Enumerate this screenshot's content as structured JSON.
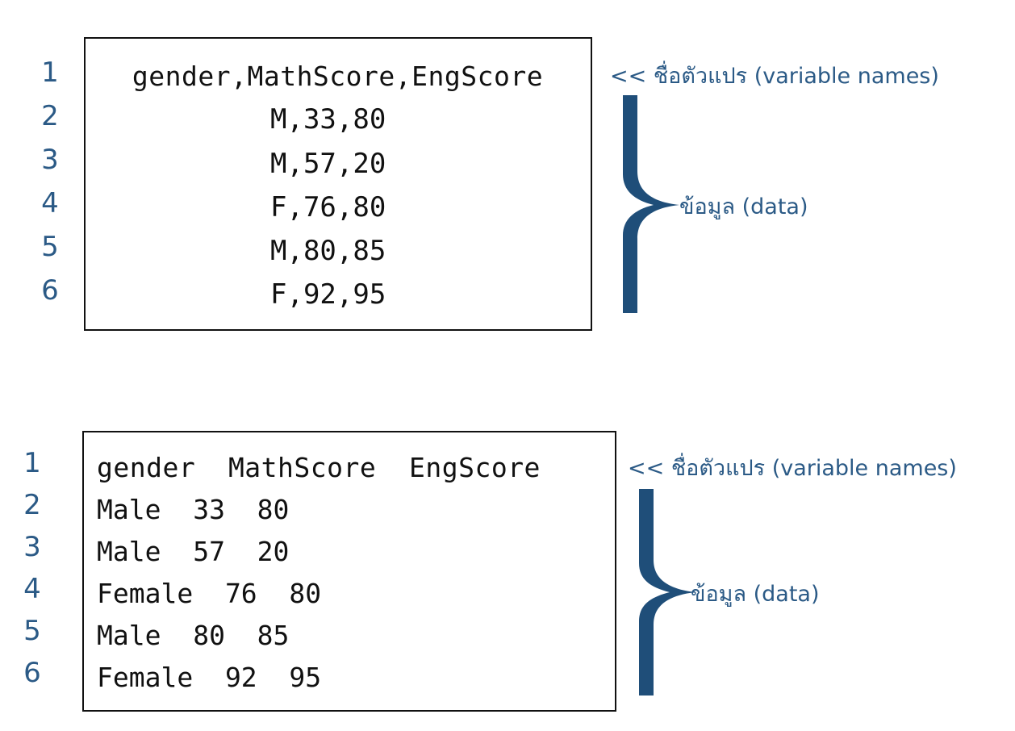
{
  "colors": {
    "accent": "#2b5a86",
    "brace": "#1f4e79",
    "text": "#111111",
    "border": "#111111"
  },
  "panel_csv": {
    "line_numbers": [
      "1",
      "2",
      "3",
      "4",
      "5",
      "6"
    ],
    "lines": [
      "gender,MathScore,EngScore",
      "M,33,80",
      "M,57,20",
      "F,76,80",
      "M,80,85",
      "F,92,95"
    ],
    "variable_names_label": "<< ชื่อตัวแปร (variable names)",
    "data_label": "ข้อมูล (data)"
  },
  "panel_space": {
    "line_numbers": [
      "1",
      "2",
      "3",
      "4",
      "5",
      "6"
    ],
    "lines": [
      "gender  MathScore  EngScore",
      "Male  33  80",
      "Male  57  20",
      "Female  76  80",
      "Male  80  85",
      "Female  92  95"
    ],
    "variable_names_label": "<< ชื่อตัวแปร (variable names)",
    "data_label": "ข้อมูล (data)"
  }
}
